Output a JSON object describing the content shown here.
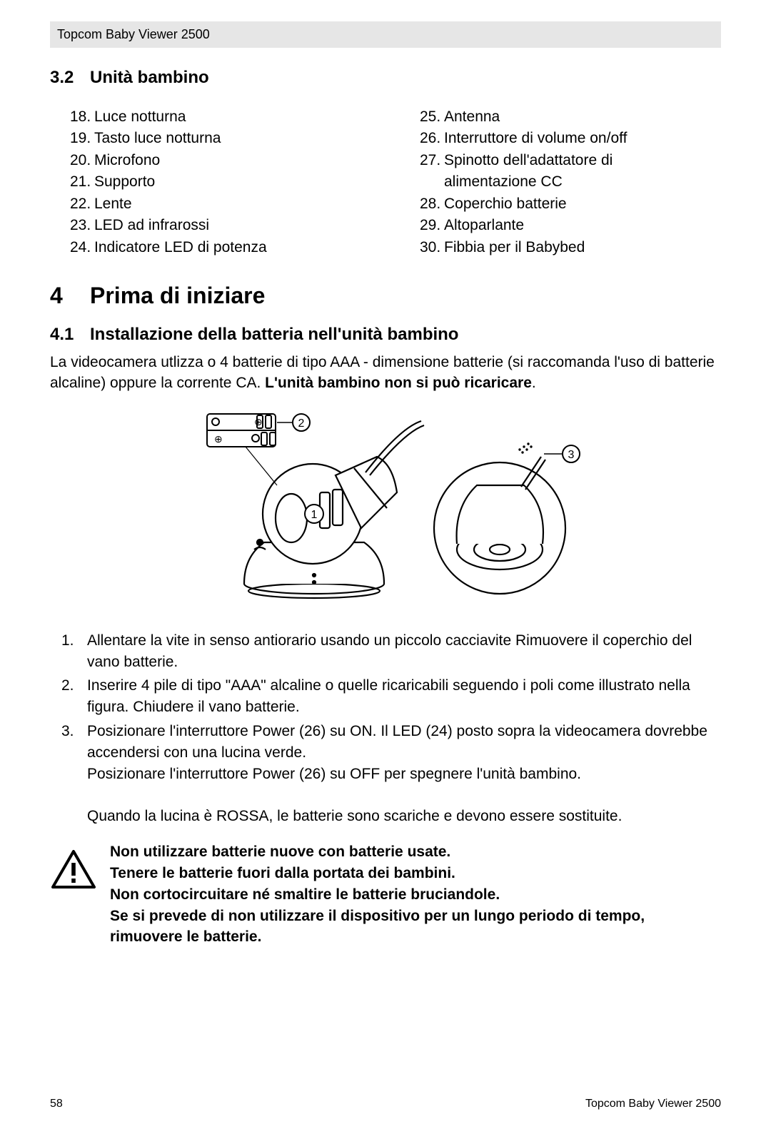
{
  "header": {
    "title": "Topcom Baby Viewer 2500"
  },
  "section32": {
    "number": "3.2",
    "title": "Unità bambino",
    "left": [
      {
        "n": "18.",
        "t": "Luce notturna"
      },
      {
        "n": "19.",
        "t": "Tasto luce notturna"
      },
      {
        "n": "20.",
        "t": "Microfono"
      },
      {
        "n": "21.",
        "t": "Supporto"
      },
      {
        "n": "22.",
        "t": "Lente"
      },
      {
        "n": "23.",
        "t": "LED ad infrarossi"
      },
      {
        "n": "24.",
        "t": "Indicatore LED di potenza"
      }
    ],
    "right": [
      {
        "n": "25.",
        "t": "Antenna"
      },
      {
        "n": "26.",
        "t": "Interruttore di volume on/off"
      },
      {
        "n": "27.",
        "t": "Spinotto dell'adattatore di",
        "cont": "alimentazione CC"
      },
      {
        "n": "28.",
        "t": "Coperchio batterie"
      },
      {
        "n": "29.",
        "t": "Altoparlante"
      },
      {
        "n": "30.",
        "t": "Fibbia per il Babybed"
      }
    ]
  },
  "chapter4": {
    "number": "4",
    "title": "Prima di iniziare"
  },
  "section41": {
    "number": "4.1",
    "title": "Installazione della batteria nell'unità bambino",
    "intro_a": "La videocamera utlizza o 4 batterie di tipo AAA - dimensione batterie (si raccomanda l'uso di batterie alcaline) oppure la corrente CA. ",
    "intro_b": "L'unità bambino non si può ricaricare",
    "intro_c": "."
  },
  "figure": {
    "callouts": {
      "c1": "1",
      "c2": "2",
      "c3": "3"
    }
  },
  "steps": [
    {
      "n": "1.",
      "t": "Allentare la vite in senso antiorario usando un piccolo cacciavite Rimuovere il coperchio del vano batterie."
    },
    {
      "n": "2.",
      "t": "Inserire 4 pile di tipo \"AAA\" alcaline o quelle ricaricabili seguendo i poli come illustrato nella figura. Chiudere il vano batterie."
    },
    {
      "n": "3.",
      "t": "Posizionare l'interruttore Power (26) su ON. Il LED (24) posto sopra la videocamera dovrebbe accendersi con una lucina verde.\nPosizionare l'interruttore Power (26) su OFF per spegnere l'unità bambino.\n\nQuando la lucina è ROSSA, le batterie sono scariche e devono essere sostituite."
    }
  ],
  "warning": {
    "lines": [
      "Non utilizzare batterie nuove con batterie usate.",
      "Tenere le batterie fuori dalla portata dei bambini.",
      "Non cortocircuitare né smaltire le batterie bruciandole.",
      "Se si prevede di non utilizzare il dispositivo per un lungo periodo di tempo, rimuovere le batterie."
    ]
  },
  "footer": {
    "page": "58",
    "product": "Topcom Baby Viewer 2500"
  },
  "colors": {
    "headerbg": "#e6e6e6",
    "stroke": "#000000"
  }
}
